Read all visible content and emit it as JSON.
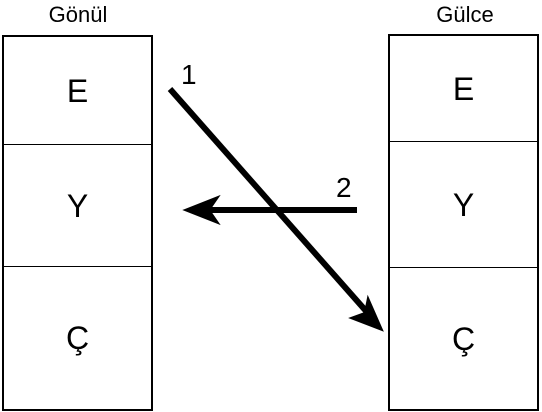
{
  "diagram": {
    "left_column": {
      "title": "Gönül",
      "cells": [
        "E",
        "Y",
        "Ç"
      ]
    },
    "right_column": {
      "title": "Gülce",
      "cells": [
        "E",
        "Y",
        "Ç"
      ]
    },
    "arrows": [
      {
        "label": "1",
        "from": "Gönül E",
        "to": "Gülce Ç"
      },
      {
        "label": "2",
        "from": "Gülce Y",
        "to": "Gönül Y"
      }
    ],
    "colors": {
      "stroke": "#000000",
      "background": "#ffffff"
    }
  }
}
